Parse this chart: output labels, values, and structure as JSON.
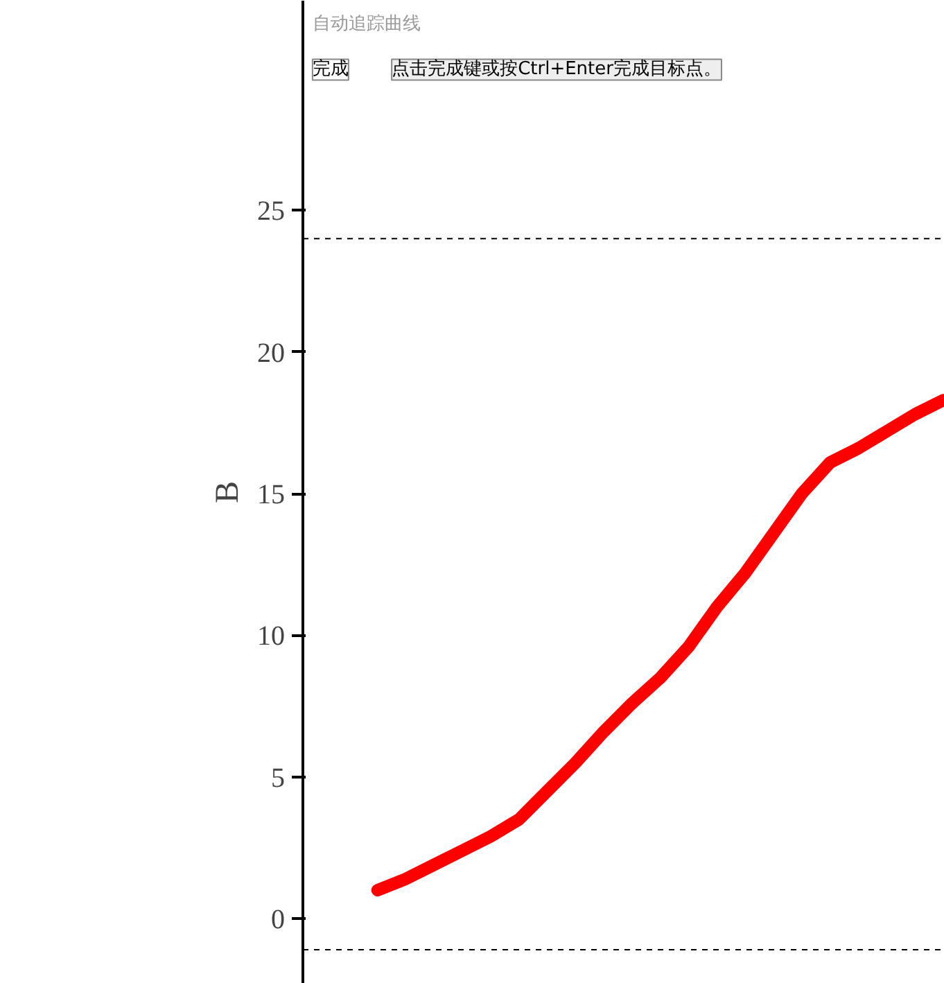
{
  "chart_data": {
    "type": "line",
    "ylabel": "B",
    "categories": [
      null,
      null,
      null,
      null,
      null,
      null,
      null,
      null,
      null,
      null,
      null,
      null,
      null,
      null,
      null,
      null,
      null,
      null,
      null,
      null,
      null
    ],
    "series": [
      {
        "color": "#ff0000",
        "values": [
          1.0,
          1.4,
          1.9,
          2.4,
          2.9,
          3.5,
          4.5,
          5.5,
          6.6,
          7.6,
          8.5,
          9.6,
          11.0,
          12.2,
          13.6,
          15.0,
          16.1,
          16.6,
          17.2,
          17.8,
          18.3
        ]
      }
    ],
    "ylim": [
      -2.3,
      32.4
    ],
    "yticks": [
      0,
      5,
      10,
      15,
      20,
      25
    ],
    "ref_lines": [
      {
        "axis": "y",
        "value": 24,
        "line_style": "dashed",
        "color": "#000000"
      },
      {
        "axis": "y",
        "value": -1.1,
        "line_style": "dashed",
        "color": "#000000"
      }
    ],
    "annotations": [
      "自动追踪曲线",
      "完成",
      "点击完成键或按Ctrl+Enter完成目标点。"
    ],
    "grid": false,
    "marker": "none",
    "line_style": "solid"
  }
}
